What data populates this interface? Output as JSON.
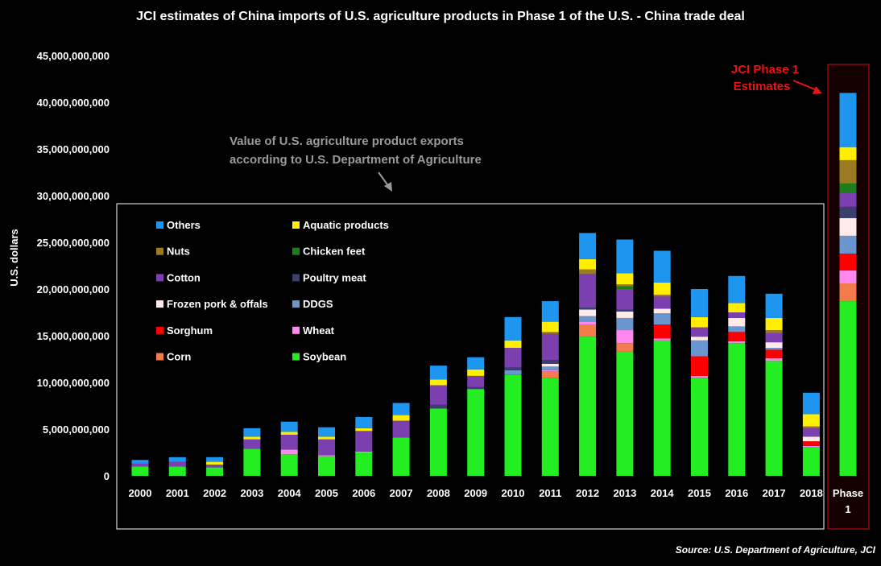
{
  "chart_data": {
    "type": "bar",
    "stacked": true,
    "title": "JCI estimates of China imports of U.S. agriculture products in Phase 1 of the U.S. - China trade deal",
    "ylabel": "U.S. dollars",
    "xlabel": "",
    "ylim": [
      0,
      45000000000
    ],
    "yticks": [
      0,
      5000000000,
      10000000000,
      15000000000,
      20000000000,
      25000000000,
      30000000000,
      35000000000,
      40000000000,
      45000000000
    ],
    "ytick_labels": [
      "0",
      "5,000,000,000",
      "10,000,000,000",
      "15,000,000,000",
      "20,000,000,000",
      "25,000,000,000",
      "30,000,000,000",
      "35,000,000,000",
      "40,000,000,000",
      "45,000,000,000"
    ],
    "categories": [
      "2000",
      "2001",
      "2002",
      "2003",
      "2004",
      "2005",
      "2006",
      "2007",
      "2008",
      "2009",
      "2010",
      "2011",
      "2012",
      "2013",
      "2014",
      "2015",
      "2016",
      "2017",
      "2018",
      "Phase 1"
    ],
    "legend_placement": "top-left inside box",
    "legend_order": [
      "Others",
      "Aquatic products",
      "Nuts",
      "Chicken feet",
      "Cotton",
      "Poultry meat",
      "Frozen pork & offals",
      "DDGS",
      "Sorghum",
      "Wheat",
      "Corn",
      "Soybean"
    ],
    "series": [
      {
        "name": "Soybean",
        "color": "#22ee22",
        "values": [
          1000000000,
          1000000000,
          900000000,
          2900000000,
          2300000000,
          2100000000,
          2500000000,
          4100000000,
          7200000000,
          9300000000,
          10800000000,
          10500000000,
          14900000000,
          13300000000,
          14500000000,
          10500000000,
          14200000000,
          12300000000,
          3100000000,
          18700000000
        ]
      },
      {
        "name": "Corn",
        "color": "#f47c4a",
        "values": [
          0,
          0,
          0,
          0,
          0,
          0,
          0,
          0,
          0,
          0,
          0,
          700000000,
          1300000000,
          900000000,
          0,
          0,
          0,
          0,
          0,
          1900000000
        ]
      },
      {
        "name": "Wheat",
        "color": "#ff88ee",
        "values": [
          0,
          0,
          0,
          0,
          500000000,
          100000000,
          100000000,
          0,
          0,
          0,
          0,
          100000000,
          300000000,
          1400000000,
          200000000,
          200000000,
          200000000,
          300000000,
          100000000,
          1400000000
        ]
      },
      {
        "name": "Sorghum",
        "color": "#ff0000",
        "values": [
          0,
          0,
          0,
          0,
          0,
          0,
          0,
          0,
          0,
          0,
          0,
          0,
          0,
          0,
          1500000000,
          2100000000,
          1000000000,
          900000000,
          500000000,
          1800000000
        ]
      },
      {
        "name": "DDGS",
        "color": "#6a96d0",
        "values": [
          0,
          0,
          0,
          0,
          0,
          0,
          0,
          0,
          0,
          0,
          500000000,
          400000000,
          600000000,
          1300000000,
          1200000000,
          1700000000,
          600000000,
          200000000,
          0,
          1900000000
        ]
      },
      {
        "name": "Frozen pork & offals",
        "color": "#ffeaea",
        "values": [
          0,
          0,
          0,
          0,
          0,
          0,
          0,
          0,
          0,
          0,
          0,
          300000000,
          700000000,
          700000000,
          500000000,
          400000000,
          900000000,
          600000000,
          500000000,
          1900000000
        ]
      },
      {
        "name": "Poultry meat",
        "color": "#3a3f6e",
        "values": [
          0,
          0,
          0,
          0,
          0,
          0,
          0,
          0,
          400000000,
          200000000,
          300000000,
          400000000,
          200000000,
          200000000,
          0,
          0,
          0,
          0,
          0,
          1200000000
        ]
      },
      {
        "name": "Cotton",
        "color": "#7c3fb0",
        "values": [
          300000000,
          500000000,
          300000000,
          1000000000,
          1600000000,
          1700000000,
          2200000000,
          1800000000,
          2100000000,
          1200000000,
          2100000000,
          2800000000,
          3600000000,
          2200000000,
          1300000000,
          1000000000,
          600000000,
          1000000000,
          900000000,
          1500000000
        ]
      },
      {
        "name": "Chicken feet",
        "color": "#1e7e1e",
        "values": [
          0,
          0,
          0,
          0,
          0,
          0,
          0,
          0,
          0,
          0,
          0,
          0,
          0,
          300000000,
          0,
          0,
          0,
          0,
          0,
          1000000000
        ]
      },
      {
        "name": "Nuts",
        "color": "#9b7a24",
        "values": [
          0,
          0,
          0,
          0,
          0,
          0,
          0,
          0,
          0,
          0,
          0,
          200000000,
          500000000,
          200000000,
          200000000,
          0,
          0,
          300000000,
          200000000,
          2500000000
        ]
      },
      {
        "name": "Aquatic products",
        "color": "#ffee00",
        "values": [
          0,
          0,
          300000000,
          300000000,
          300000000,
          300000000,
          300000000,
          600000000,
          600000000,
          700000000,
          800000000,
          1100000000,
          1100000000,
          1200000000,
          1300000000,
          1100000000,
          1000000000,
          1300000000,
          1300000000,
          1400000000
        ]
      },
      {
        "name": "Others",
        "color": "#1e96f0",
        "values": [
          400000000,
          500000000,
          500000000,
          900000000,
          1100000000,
          1000000000,
          1200000000,
          1300000000,
          1500000000,
          1300000000,
          2500000000,
          2200000000,
          2800000000,
          3600000000,
          3400000000,
          3000000000,
          2900000000,
          2600000000,
          2300000000,
          5800000000
        ]
      }
    ]
  },
  "annotations": {
    "usda_box": "Value of U.S. agriculture product exports according to U.S. Department of Agriculture",
    "usda_line1": "Value of U.S. agriculture product exports",
    "usda_line2": "according to U.S. Department of Agriculture",
    "jci_line1": "JCI Phase 1",
    "jci_line2": "Estimates",
    "jci_color": "#ee1111",
    "source": "Source: U.S. Department of Agriculture, JCI",
    "phase_label_line1": "Phase",
    "phase_label_line2": "1"
  }
}
